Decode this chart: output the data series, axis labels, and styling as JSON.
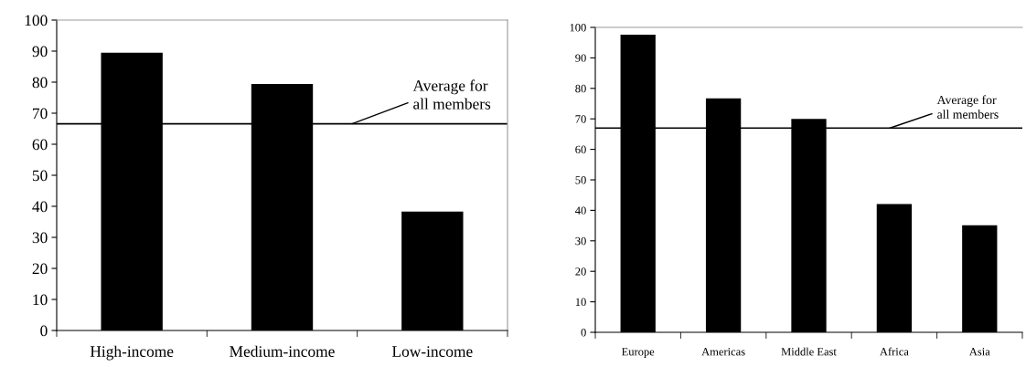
{
  "chart_data": [
    {
      "type": "bar",
      "categories": [
        "High-income",
        "Medium-income",
        "Low-income"
      ],
      "values": [
        89.5,
        79.4,
        38.3
      ],
      "color": "#000000",
      "ylim": [
        0,
        100
      ],
      "yticks": [
        0,
        10,
        20,
        30,
        40,
        50,
        60,
        70,
        80,
        90,
        100
      ],
      "grid": false,
      "legend": false,
      "ref_lines": [
        {
          "axis": "y",
          "value": 66.6,
          "label": "Average for\nall members",
          "color": "#000000"
        }
      ]
    },
    {
      "type": "bar",
      "categories": [
        "Europe",
        "Americas",
        "Middle East",
        "Africa",
        "Asia"
      ],
      "values": [
        97.6,
        76.7,
        70.0,
        42.1,
        35.1
      ],
      "color": "#000000",
      "ylim": [
        0,
        100
      ],
      "yticks": [
        0,
        10,
        20,
        30,
        40,
        50,
        60,
        70,
        80,
        90,
        100
      ],
      "grid": false,
      "legend": false,
      "ref_lines": [
        {
          "axis": "y",
          "value": 67.0,
          "label": "Average for\nall members",
          "color": "#000000"
        }
      ]
    }
  ]
}
